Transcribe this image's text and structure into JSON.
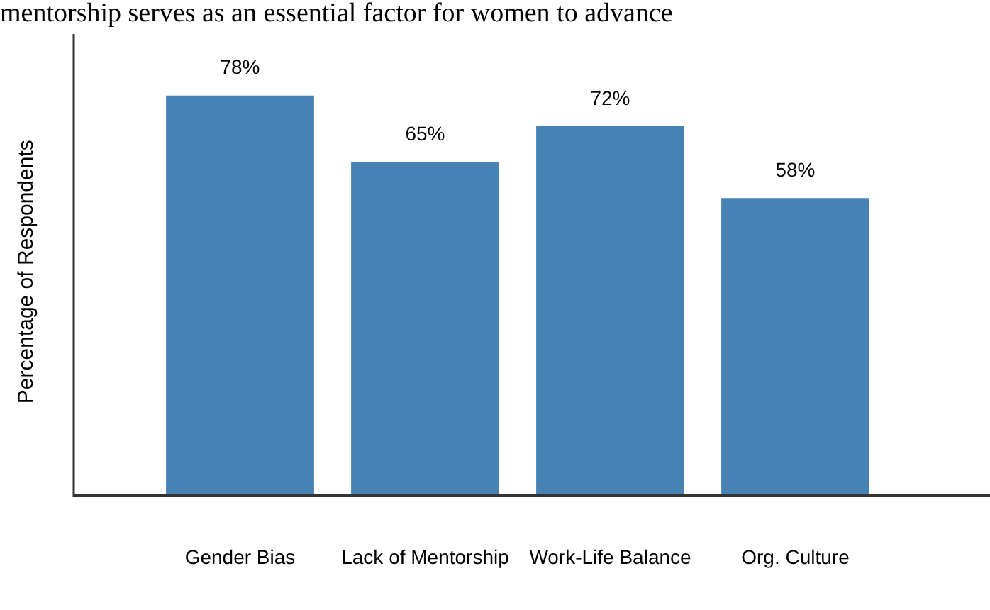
{
  "chart_data": {
    "type": "bar",
    "annotations": [
      "mentorship serves as an essential factor for women to advance"
    ],
    "ylabel": "Percentage of Respondents",
    "categories": [
      "Gender Bias",
      "Lack of Mentorship",
      "Work-Life Balance",
      "Org. Culture"
    ],
    "values": [
      78,
      65,
      72,
      58
    ],
    "value_labels": [
      "78%",
      "65%",
      "72%",
      "58%"
    ],
    "color": "#4682b4",
    "grid": false,
    "legend": false
  }
}
